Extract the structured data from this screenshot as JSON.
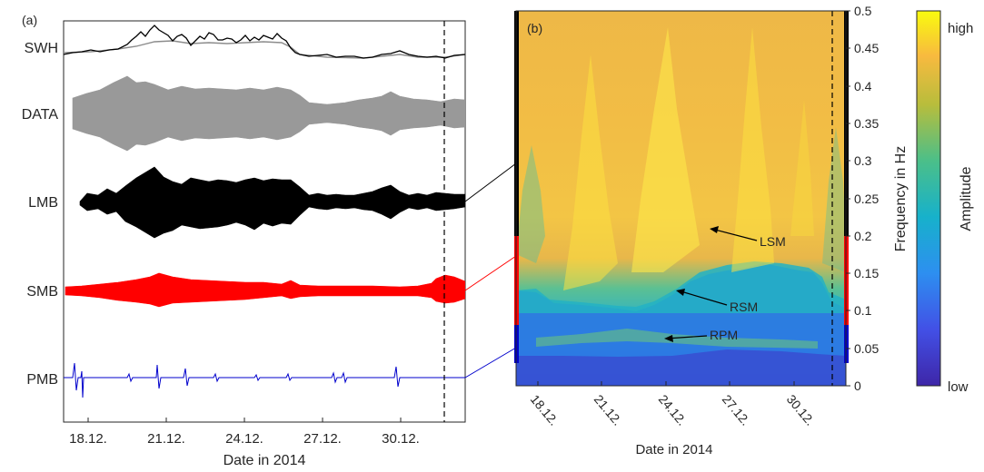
{
  "chart_data": [
    {
      "type": "line",
      "panel_label": "(a)",
      "xlabel": "Date in 2014",
      "x_ticks": [
        "18.12.",
        "21.12.",
        "24.12.",
        "27.12.",
        "30.12."
      ],
      "x_range": [
        "16.12.",
        "01.01."
      ],
      "marker_line_date": "31.12.",
      "series": [
        {
          "name": "SWH",
          "color": "#000000",
          "secondary_color": "#8c8c8c"
        },
        {
          "name": "DATA",
          "color": "#999999"
        },
        {
          "name": "LMB",
          "color": "#000000"
        },
        {
          "name": "SMB",
          "color": "#ff0000"
        },
        {
          "name": "PMB",
          "color": "#0000cc"
        }
      ]
    },
    {
      "type": "heatmap",
      "panel_label": "(b)",
      "xlabel": "Date in 2014",
      "ylabel": "Frequency in Hz",
      "x_ticks": [
        "18.12.",
        "21.12.",
        "24.12.",
        "27.12.",
        "30.12."
      ],
      "y_ticks": [
        "0",
        "0.05",
        "0.1",
        "0.15",
        "0.2",
        "0.25",
        "0.3",
        "0.35",
        "0.4",
        "0.45",
        "0.5"
      ],
      "ylim": [
        0,
        0.5
      ],
      "annotations": [
        {
          "text": "LSM",
          "date": "26.12.",
          "freq": 0.21
        },
        {
          "text": "RSM",
          "date": "25.12.",
          "freq": 0.135
        },
        {
          "text": "RPM",
          "date": "24.12.",
          "freq": 0.068
        }
      ],
      "band_markers": [
        {
          "band": "LMB",
          "color": "#000000",
          "fmin": 0.2,
          "fmax": 0.5
        },
        {
          "band": "SMB",
          "color": "#ff0000",
          "fmin": 0.085,
          "fmax": 0.2
        },
        {
          "band": "PMB",
          "color": "#0000cc",
          "fmin": 0.035,
          "fmax": 0.085
        }
      ],
      "colorbar": {
        "label": "Amplitude",
        "max_label": "high",
        "min_label": "low"
      }
    }
  ]
}
